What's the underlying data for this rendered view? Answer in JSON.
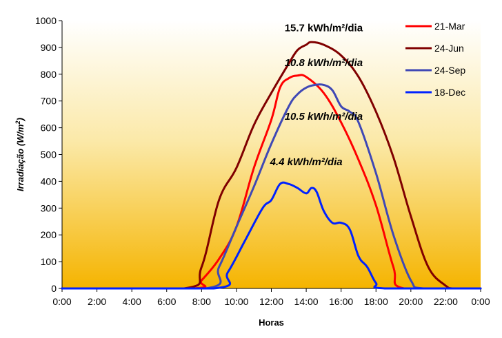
{
  "chart_data": {
    "type": "line",
    "xlabel": "Horas",
    "ylabel": "Irradiação (W/m²)",
    "ylim": [
      0,
      1000
    ],
    "y_ticks": [
      0,
      100,
      200,
      300,
      400,
      500,
      600,
      700,
      800,
      900,
      1000
    ],
    "y_tick_labels": [
      "0",
      "100",
      "200",
      "300",
      "400",
      "500",
      "600",
      "700",
      "800",
      "900",
      "1000"
    ],
    "xlim": [
      0,
      24
    ],
    "x_ticks": [
      0,
      2,
      4,
      6,
      8,
      10,
      12,
      14,
      16,
      18,
      20,
      22,
      24
    ],
    "x_tick_labels": [
      "0:00",
      "2:00",
      "4:00",
      "6:00",
      "8:00",
      "10:00",
      "12:00",
      "14:00",
      "16:00",
      "18:00",
      "20:00",
      "22:00",
      "0:00"
    ],
    "grid": false,
    "legend_position": "top-right",
    "background": "gradient white-to-orange (top to bottom)",
    "colors": {
      "bg_top": "#FFFFFF",
      "bg_mid": "#FBE9A8",
      "bg_bottom": "#F5B400",
      "21-Mar": "#FF0000",
      "24-Jun": "#800000",
      "24-Sep": "#3F48B5",
      "18-Dec": "#0022FF"
    },
    "series": [
      {
        "name": "21-Mar",
        "color": "#FF0000",
        "x": [
          0,
          7.5,
          8,
          9,
          10,
          11,
          12,
          12.5,
          13,
          13.5,
          14,
          15,
          16,
          17,
          18,
          19,
          19.6,
          24
        ],
        "y": [
          0,
          0,
          30,
          110,
          230,
          450,
          630,
          750,
          785,
          795,
          790,
          730,
          620,
          480,
          310,
          80,
          0,
          0
        ]
      },
      {
        "name": "24-Jun",
        "color": "#800000",
        "x": [
          0,
          7,
          8,
          9,
          10,
          11,
          12,
          13,
          13.5,
          14,
          14.3,
          15,
          16,
          17,
          18,
          19,
          20,
          21,
          22,
          22.4,
          24
        ],
        "y": [
          0,
          0,
          80,
          330,
          450,
          610,
          730,
          840,
          890,
          910,
          920,
          910,
          870,
          790,
          660,
          490,
          270,
          80,
          10,
          0,
          0
        ]
      },
      {
        "name": "24-Sep",
        "color": "#3F48B5",
        "x": [
          0,
          8.2,
          9,
          10,
          11,
          12,
          13,
          13.5,
          14,
          14.5,
          15,
          15.5,
          16,
          16.5,
          17,
          18,
          19,
          20,
          20.7,
          24
        ],
        "y": [
          0,
          0,
          80,
          230,
          380,
          540,
          680,
          725,
          750,
          760,
          760,
          740,
          680,
          660,
          620,
          430,
          200,
          30,
          0,
          0
        ]
      },
      {
        "name": "18-Dec",
        "color": "#0022FF",
        "x": [
          0,
          8.7,
          9.5,
          10.5,
          11.5,
          12,
          12.5,
          13,
          13.5,
          14,
          14.3,
          14.6,
          15,
          15.5,
          16,
          16.5,
          17,
          17.5,
          18,
          18.5,
          24
        ],
        "y": [
          0,
          0,
          60,
          180,
          300,
          330,
          390,
          390,
          375,
          355,
          375,
          360,
          290,
          245,
          245,
          220,
          120,
          80,
          20,
          0,
          0
        ]
      }
    ],
    "annotations": [
      {
        "text": "15.7 kWh/m²/dia",
        "x": 15.0,
        "y": 960,
        "italic": false
      },
      {
        "text": "10.8 kWh/m²/dia",
        "x": 15.0,
        "y": 830,
        "italic": true
      },
      {
        "text": "10.5 kWh/m²/dia",
        "x": 15.0,
        "y": 630,
        "italic": true
      },
      {
        "text": "4.4 kWh/m²/dia",
        "x": 14.0,
        "y": 460,
        "italic": true
      }
    ]
  }
}
